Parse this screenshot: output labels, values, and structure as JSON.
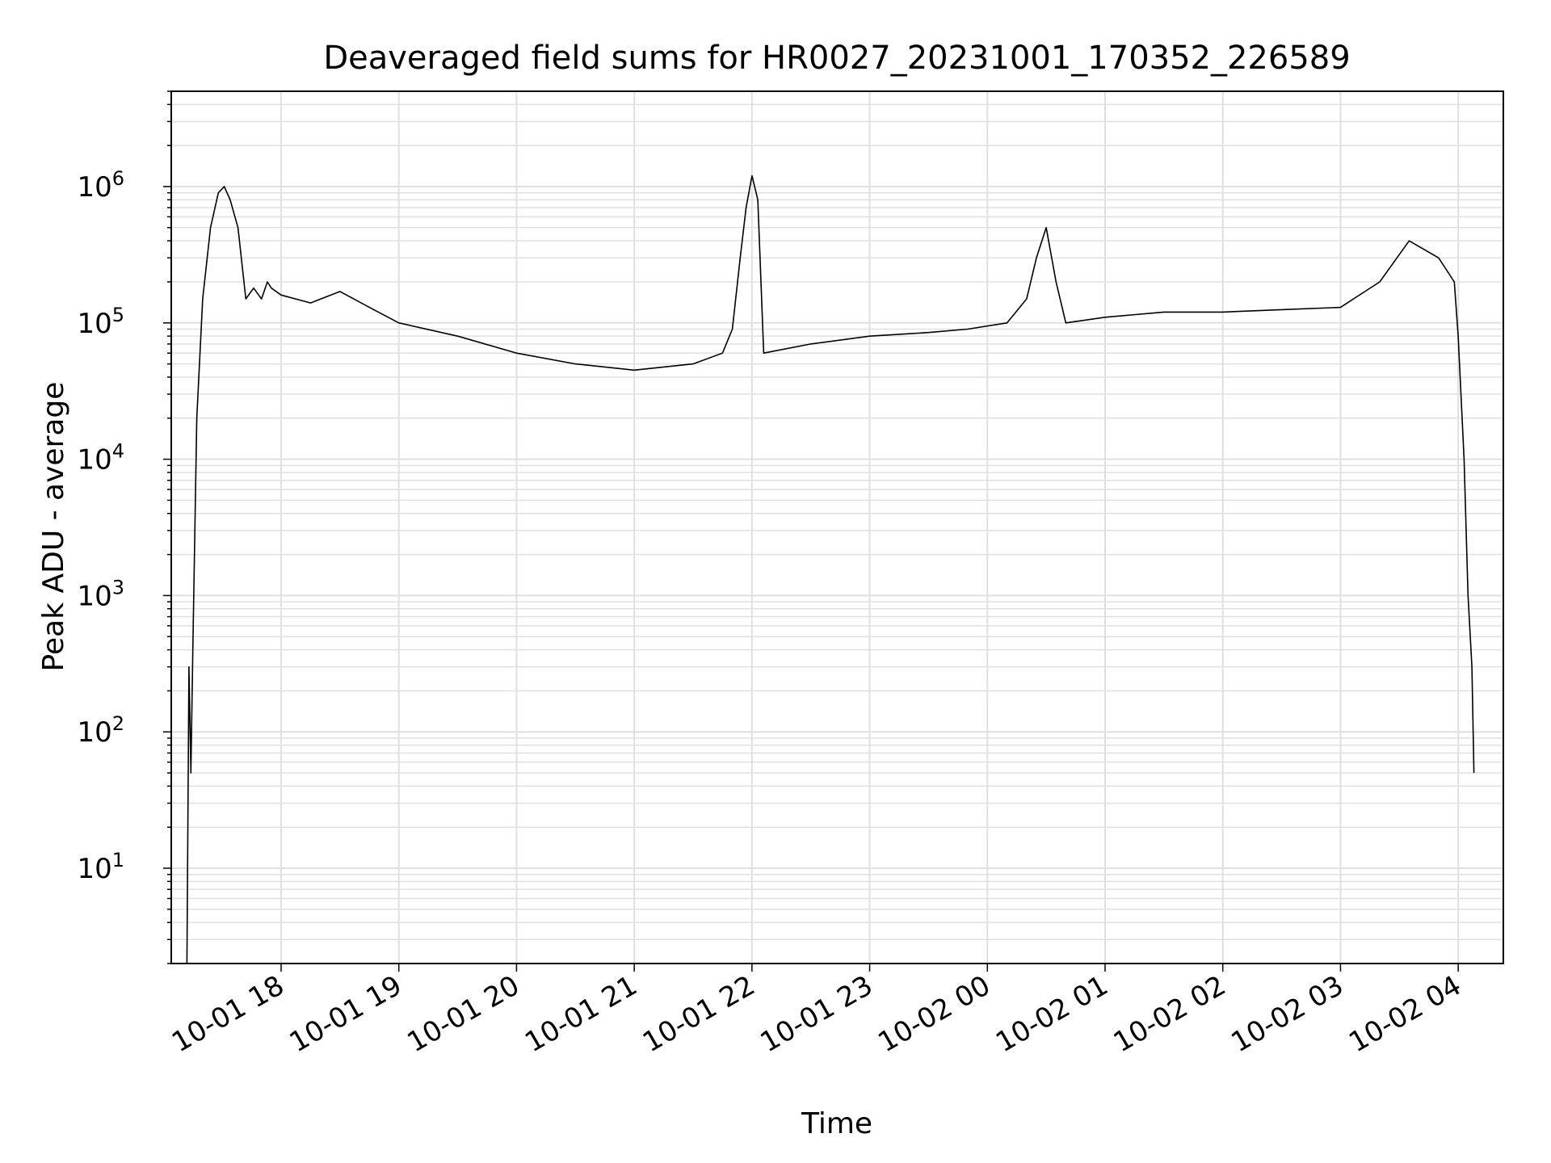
{
  "chart_data": {
    "type": "line",
    "title": "Deaveraged field sums for HR0027_20231001_170352_226589",
    "xlabel": "Time",
    "ylabel": "Peak ADU - average",
    "y_scale": "log",
    "ylim": [
      2,
      5000000
    ],
    "xlim": [
      "2023-10-01 17:04",
      "2023-10-02 04:23"
    ],
    "x_ticks": [
      "10-01 18",
      "10-01 19",
      "10-01 20",
      "10-01 21",
      "10-01 22",
      "10-01 23",
      "10-02 00",
      "10-02 01",
      "10-02 02",
      "10-02 03",
      "10-02 04"
    ],
    "y_ticks": [
      {
        "base": "10",
        "exp": "1",
        "value": 10
      },
      {
        "base": "10",
        "exp": "2",
        "value": 100
      },
      {
        "base": "10",
        "exp": "3",
        "value": 1000
      },
      {
        "base": "10",
        "exp": "4",
        "value": 10000
      },
      {
        "base": "10",
        "exp": "5",
        "value": 100000
      },
      {
        "base": "10",
        "exp": "6",
        "value": 1000000
      }
    ],
    "grid": true,
    "line_color": "#000000",
    "grid_color": "#e0e0e0",
    "series": [
      {
        "x": [
          "2023-10-01 17:12",
          "2023-10-01 17:13",
          "2023-10-01 17:14",
          "2023-10-01 17:15",
          "2023-10-01 17:17",
          "2023-10-01 17:20",
          "2023-10-01 17:24",
          "2023-10-01 17:28",
          "2023-10-01 17:31",
          "2023-10-01 17:34",
          "2023-10-01 17:38",
          "2023-10-01 17:42",
          "2023-10-01 17:46",
          "2023-10-01 17:50",
          "2023-10-01 17:53",
          "2023-10-01 17:55",
          "2023-10-01 18:00",
          "2023-10-01 18:15",
          "2023-10-01 18:30",
          "2023-10-01 18:45",
          "2023-10-01 19:00",
          "2023-10-01 19:30",
          "2023-10-01 20:00",
          "2023-10-01 20:30",
          "2023-10-01 21:00",
          "2023-10-01 21:30",
          "2023-10-01 21:45",
          "2023-10-01 21:50",
          "2023-10-01 21:54",
          "2023-10-01 21:57",
          "2023-10-01 22:00",
          "2023-10-01 22:03",
          "2023-10-01 22:06",
          "2023-10-01 22:30",
          "2023-10-01 23:00",
          "2023-10-01 23:30",
          "2023-10-01 23:50",
          "2023-10-02 00:10",
          "2023-10-02 00:20",
          "2023-10-02 00:25",
          "2023-10-02 00:30",
          "2023-10-02 00:35",
          "2023-10-02 00:40",
          "2023-10-02 01:00",
          "2023-10-02 01:30",
          "2023-10-02 02:00",
          "2023-10-02 02:30",
          "2023-10-02 03:00",
          "2023-10-02 03:20",
          "2023-10-02 03:35",
          "2023-10-02 03:50",
          "2023-10-02 03:58",
          "2023-10-02 04:00",
          "2023-10-02 04:03",
          "2023-10-02 04:05",
          "2023-10-02 04:07",
          "2023-10-02 04:08"
        ],
        "y": [
          2,
          300,
          50,
          400,
          20000,
          150000,
          500000,
          900000,
          1000000,
          800000,
          500000,
          150000,
          180000,
          150000,
          200000,
          180000,
          160000,
          140000,
          170000,
          130000,
          100000,
          80000,
          60000,
          50000,
          45000,
          50000,
          60000,
          90000,
          300000,
          700000,
          1200000,
          800000,
          60000,
          70000,
          80000,
          85000,
          90000,
          100000,
          150000,
          300000,
          500000,
          200000,
          100000,
          110000,
          120000,
          120000,
          125000,
          130000,
          200000,
          400000,
          300000,
          200000,
          80000,
          10000,
          1000,
          300,
          50
        ]
      }
    ]
  }
}
